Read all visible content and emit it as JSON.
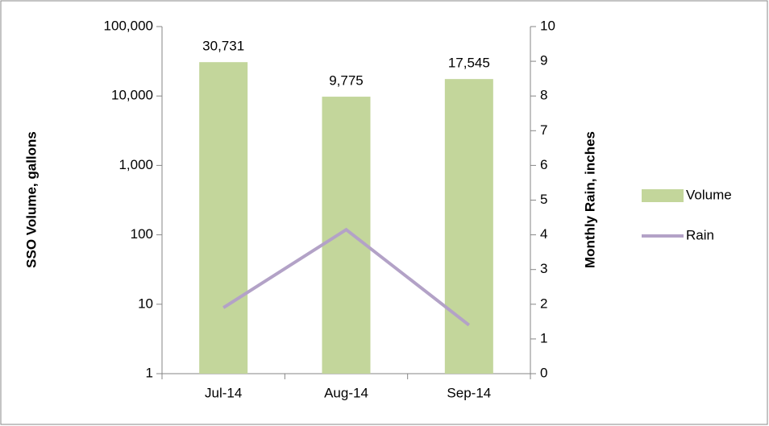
{
  "chart_data": {
    "type": "bar",
    "categories": [
      "Jul-14",
      "Aug-14",
      "Sep-14"
    ],
    "series": [
      {
        "name": "Volume",
        "type": "bar",
        "color": "#c3d69b",
        "values": [
          30731,
          9775,
          17545
        ],
        "value_labels": [
          "30,731",
          "9,775",
          "17,545"
        ]
      },
      {
        "name": "Rain",
        "type": "line",
        "axis": "y2",
        "color": "#b3a2c7",
        "values": [
          1.9,
          4.15,
          1.4
        ]
      }
    ],
    "ylabel": "SSO Volume, gallons",
    "y2label": "Monthly Rain, inches",
    "yscale": "log",
    "ylim": [
      1,
      100000
    ],
    "yticks": [
      1,
      10,
      {
        "value": 100,
        "label": "100"
      },
      {
        "value": 1000,
        "label": "1,000"
      },
      {
        "value": 10000,
        "label": "10,000"
      },
      {
        "value": 100000,
        "label": "100,000"
      }
    ],
    "y2lim": [
      0,
      10
    ],
    "y2ticks": [
      0,
      1,
      2,
      3,
      4,
      5,
      6,
      7,
      8,
      9,
      10
    ],
    "legend": "right"
  }
}
